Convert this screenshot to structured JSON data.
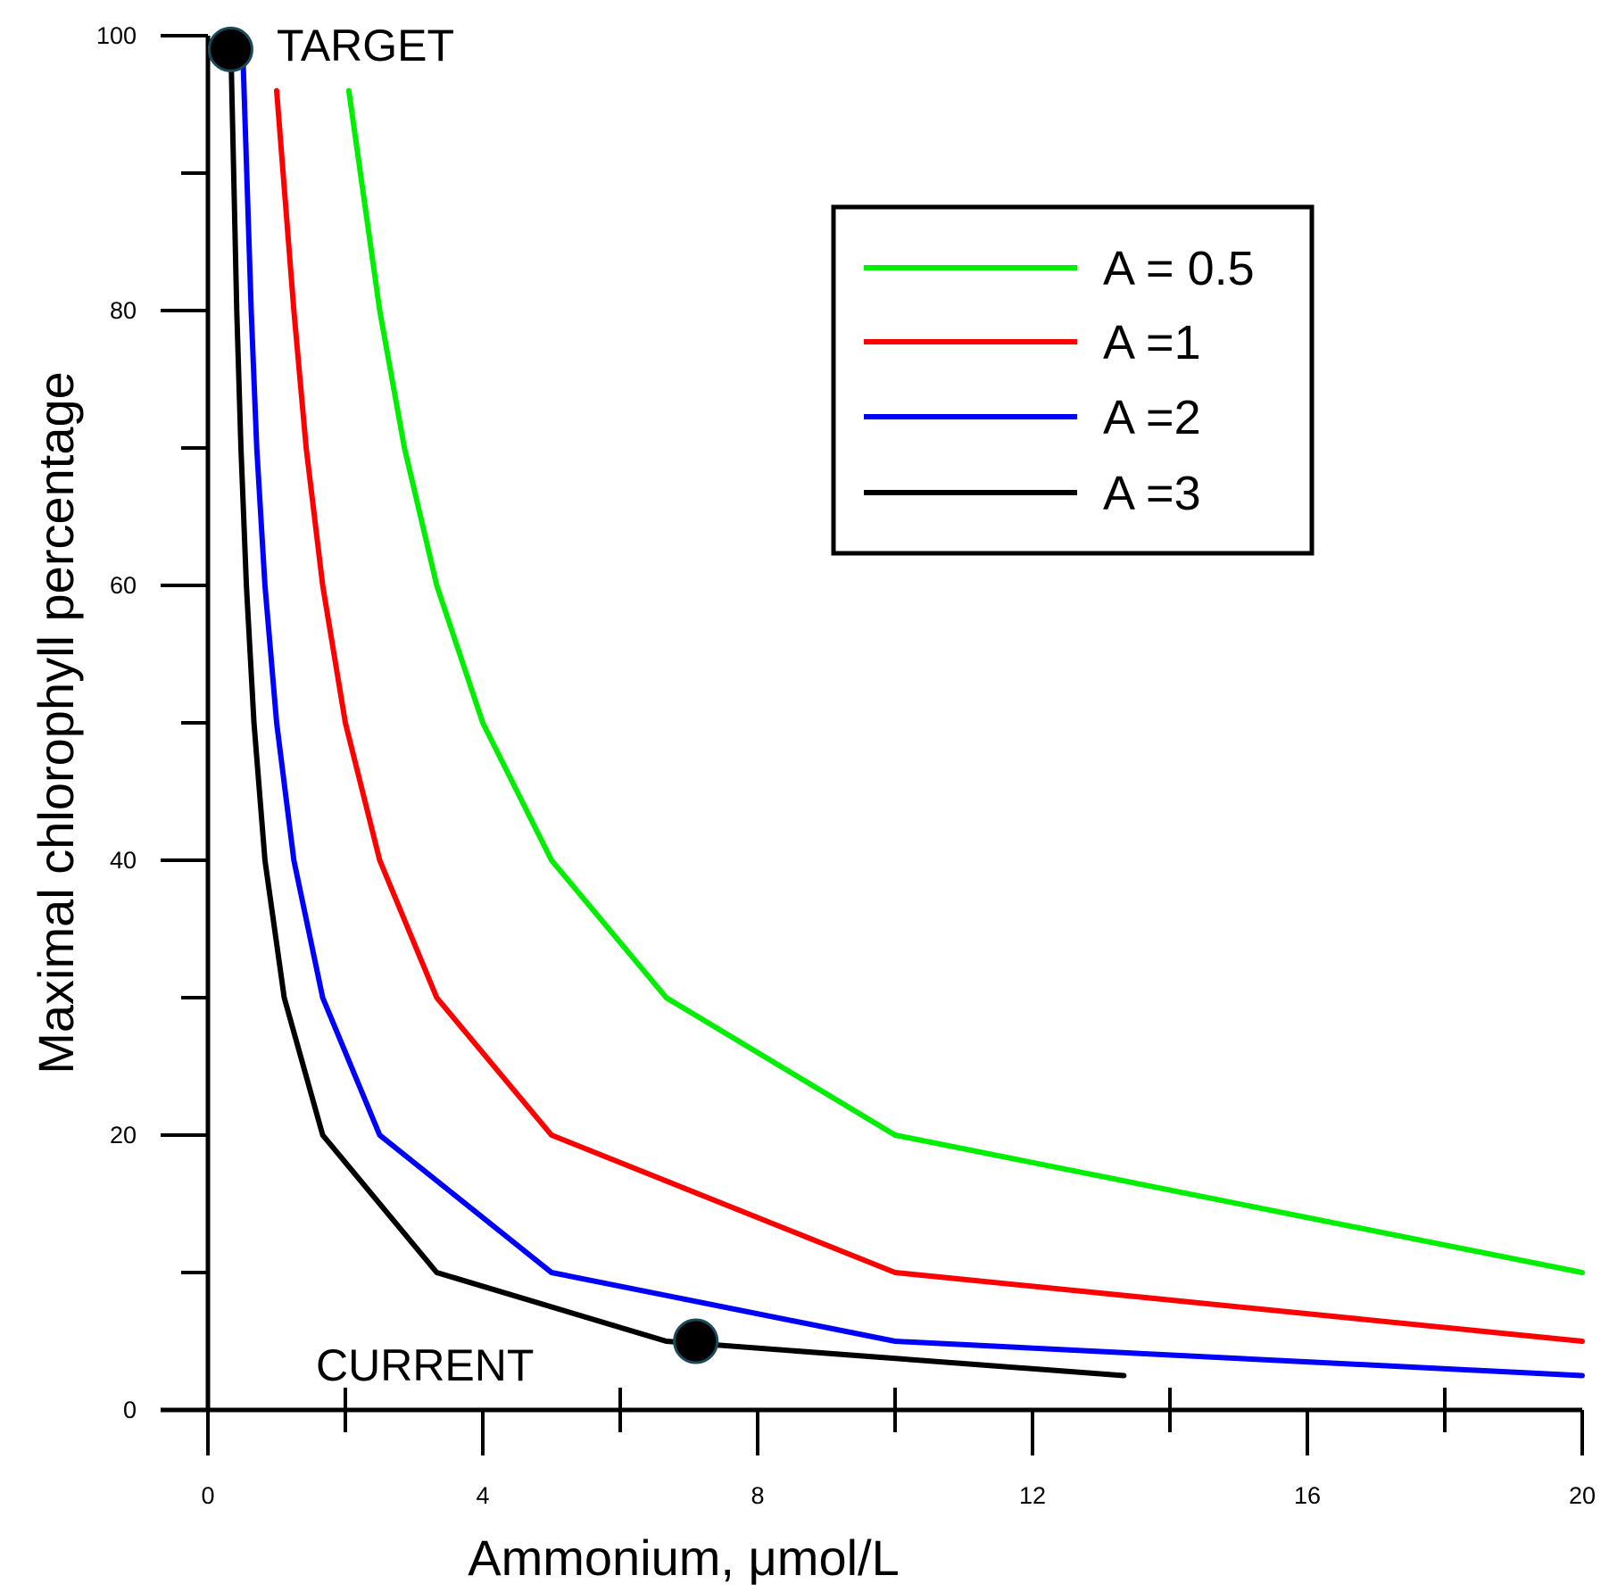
{
  "chart_data": {
    "type": "line",
    "title": "",
    "xlabel": "Ammonium, μmol/L",
    "ylabel": "Maximal chlorophyll percentage",
    "xlim": [
      0,
      20
    ],
    "ylim": [
      0,
      100
    ],
    "xticks": [
      0,
      4,
      8,
      12,
      16,
      20
    ],
    "xtick_labels": [
      "0",
      "4",
      "8",
      "12",
      "16",
      "20"
    ],
    "xminor": [
      2,
      6,
      10,
      14,
      18
    ],
    "yticks": [
      0,
      20,
      40,
      60,
      80,
      100
    ],
    "ytick_labels": [
      "0",
      "20",
      "40",
      "60",
      "80",
      "100"
    ],
    "yminor": [
      10,
      30,
      50,
      70,
      90
    ],
    "grid": false,
    "legend_position": "top-right",
    "series": [
      {
        "name": "A = 0.5",
        "color": "#00ee00",
        "x": [
          2.05,
          2.5,
          2.86,
          3.33,
          4,
          5,
          6.67,
          10,
          20
        ],
        "y": [
          96,
          80,
          70,
          60,
          50,
          40,
          30,
          20,
          10
        ]
      },
      {
        "name": "A =1",
        "color": "#ff0000",
        "x": [
          1.0,
          1.25,
          1.43,
          1.67,
          2,
          2.5,
          3.33,
          5,
          10,
          20
        ],
        "y": [
          96,
          80,
          70,
          60,
          50,
          40,
          30,
          20,
          10,
          5
        ]
      },
      {
        "name": "A =2",
        "color": "#0000ff",
        "x": [
          0.5,
          0.63,
          0.71,
          0.83,
          1.0,
          1.25,
          1.67,
          2.5,
          5,
          10,
          20
        ],
        "y": [
          100,
          80,
          70,
          60,
          50,
          40,
          30,
          20,
          10,
          5,
          2.5
        ]
      },
      {
        "name": "A =3",
        "color": "#000000",
        "x": [
          0.33,
          0.42,
          0.48,
          0.56,
          0.67,
          0.83,
          1.11,
          1.67,
          3.33,
          6.67,
          13.33
        ],
        "y": [
          100,
          80,
          70,
          60,
          50,
          40,
          30,
          20,
          10,
          5,
          2.5
        ]
      }
    ],
    "annotations": [
      {
        "label": "TARGET",
        "point": [
          0.33,
          99
        ]
      },
      {
        "label": "CURRENT",
        "point": [
          7.1,
          5
        ]
      }
    ]
  }
}
